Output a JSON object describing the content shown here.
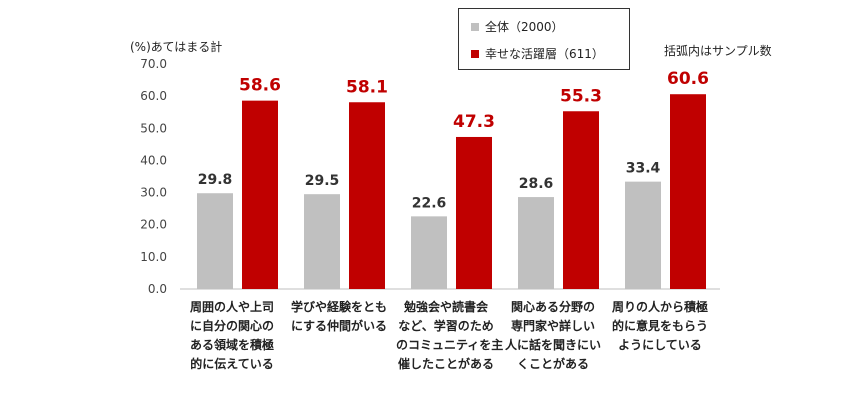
{
  "chart_data": {
    "type": "bar",
    "ylabel": "(%)あてはまる計",
    "note": "括弧内はサンプル数",
    "ylim": [
      0,
      70
    ],
    "yticks": [
      "0.0",
      "10.0",
      "20.0",
      "30.0",
      "40.0",
      "50.0",
      "60.0",
      "70.0"
    ],
    "categories": [
      [
        "周囲の人や上司",
        "に自分の関心の",
        "ある領域を積極",
        "的に伝えている"
      ],
      [
        "学びや経験をとも",
        "にする仲間がいる"
      ],
      [
        "勉強会や読書会",
        "など、学習のため",
        "のコミュニティを主",
        "催したことがある"
      ],
      [
        "関心ある分野の",
        "専門家や詳しい",
        "人に話を聞きにい",
        "くことがある"
      ],
      [
        "周りの人から積極",
        "的に意見をもらう",
        "ようにしている"
      ]
    ],
    "series": [
      {
        "name": "全体（2000）",
        "color": "#c0c0c0",
        "label_color": "#333333",
        "values": [
          29.8,
          29.5,
          22.6,
          28.6,
          33.4
        ],
        "labels": [
          "29.8",
          "29.5",
          "22.6",
          "28.6",
          "33.4"
        ]
      },
      {
        "name": "幸せな活躍層（611）",
        "color": "#c00000",
        "label_color": "#c00000",
        "values": [
          58.6,
          58.1,
          47.3,
          55.3,
          60.6
        ],
        "labels": [
          "58.6",
          "58.1",
          "47.3",
          "55.3",
          "60.6"
        ]
      }
    ]
  }
}
